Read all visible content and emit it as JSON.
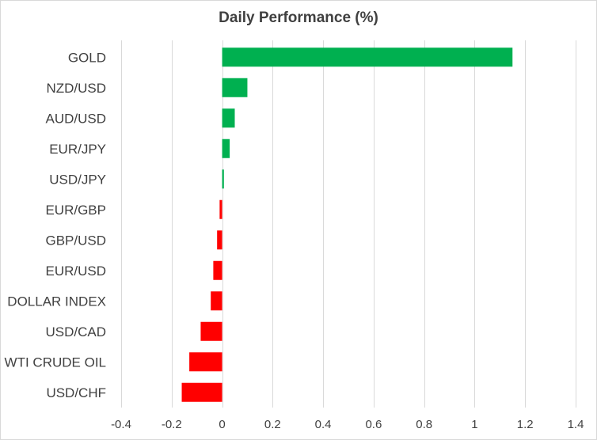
{
  "chart_data": {
    "type": "bar",
    "orientation": "horizontal",
    "title": "Daily Performance  (%)",
    "xlabel": "",
    "ylabel": "",
    "xlim": [
      -0.4,
      1.4
    ],
    "xticks": [
      -0.4,
      -0.2,
      0,
      0.2,
      0.4,
      0.6,
      0.8,
      1,
      1.2,
      1.4
    ],
    "grid": true,
    "categories": [
      "GOLD",
      "NZD/USD",
      "AUD/USD",
      "EUR/JPY",
      "USD/JPY",
      "EUR/GBP",
      "GBP/USD",
      "EUR/USD",
      "DOLLAR INDEX",
      "USD/CAD",
      "WTI CRUDE OIL",
      "USD/CHF"
    ],
    "values": [
      1.15,
      0.1,
      0.05,
      0.03,
      0.007,
      -0.01,
      -0.02,
      -0.035,
      -0.045,
      -0.085,
      -0.13,
      -0.16
    ],
    "colors": {
      "positive": "#00b050",
      "negative": "#ff0000",
      "grid": "#d9d9d9",
      "text": "#404040"
    }
  }
}
